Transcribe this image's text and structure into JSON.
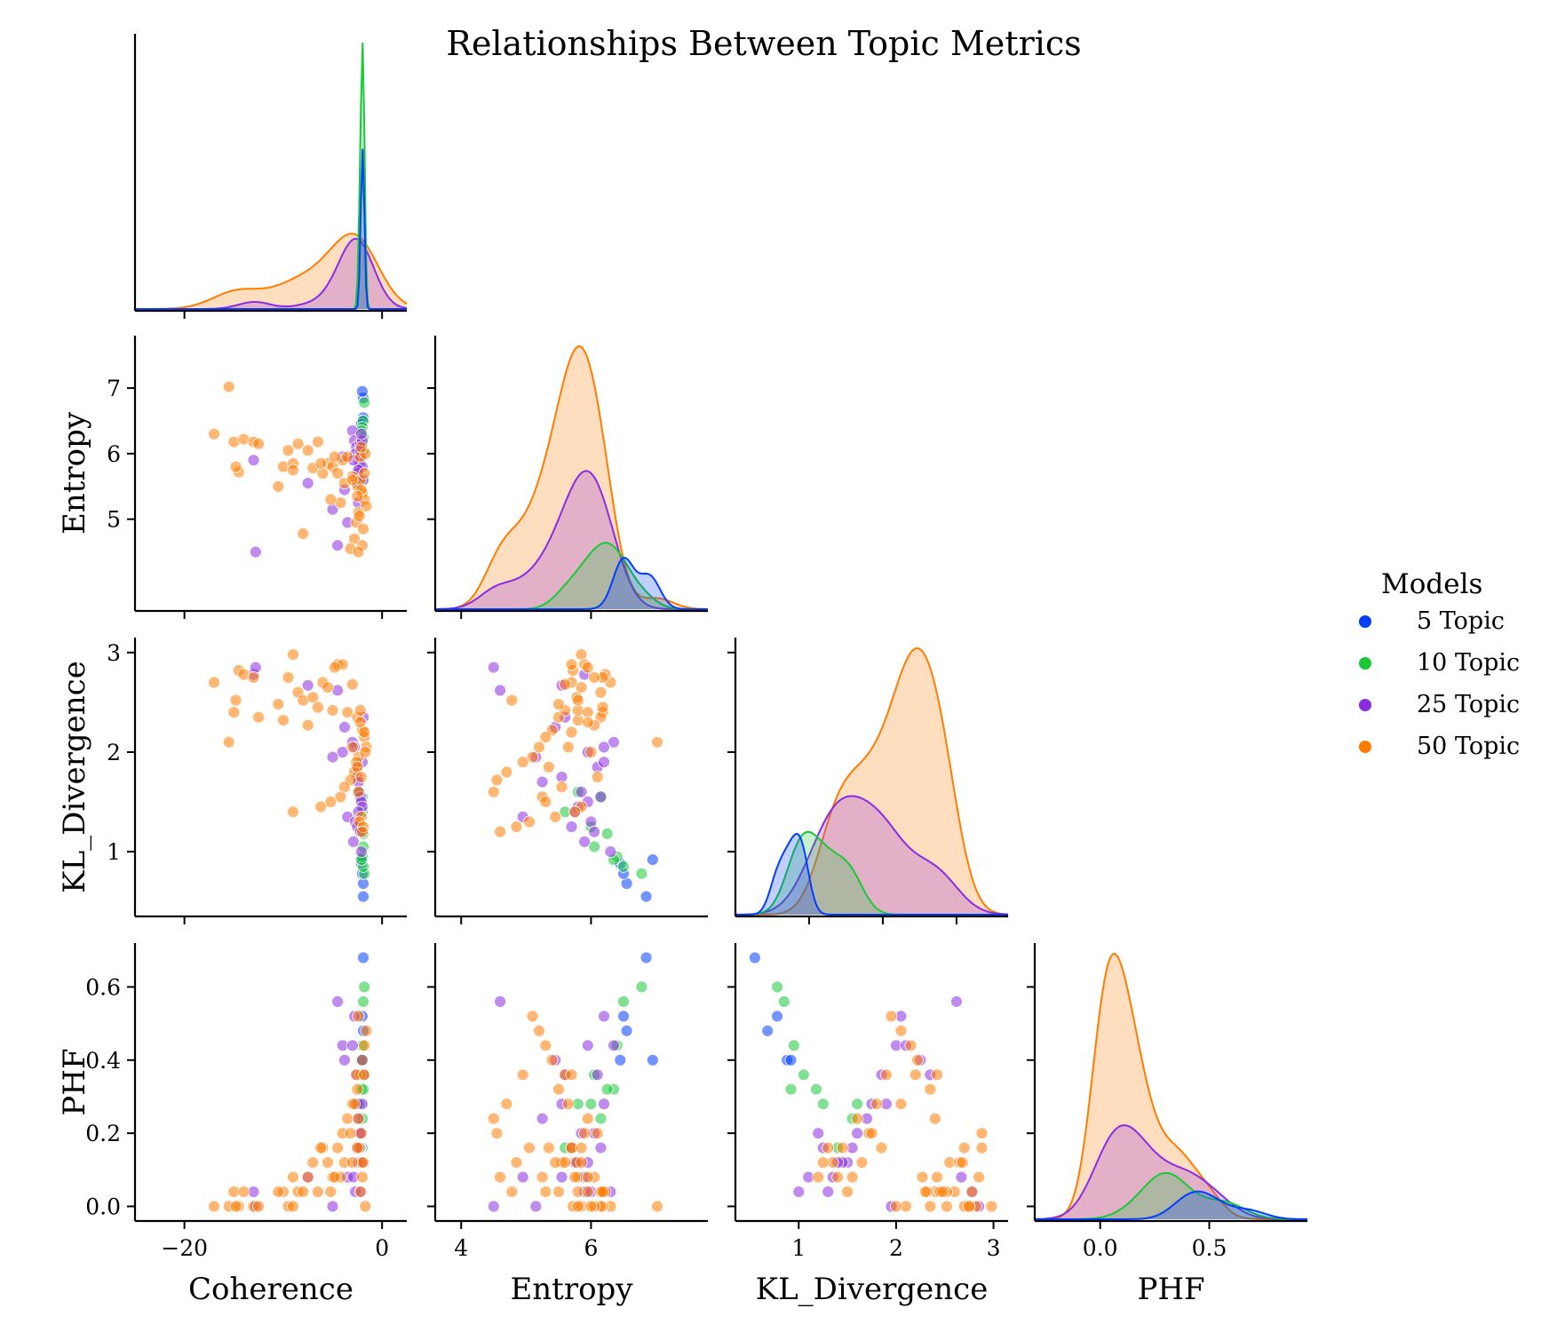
{
  "chart_data": {
    "type": "scatter",
    "title": "Relationships Between Topic Metrics",
    "variables": [
      "Coherence",
      "Entropy",
      "KL_Divergence",
      "PHF"
    ],
    "legend": {
      "title": "Models",
      "placement": "right",
      "entries": [
        "5 Topic",
        "10 Topic",
        "25 Topic",
        "50 Topic"
      ]
    },
    "colors": {
      "5 Topic": "#023eff",
      "10 Topic": "#1ac938",
      "25 Topic": "#8b2be2",
      "50 Topic": "#ff7c00"
    },
    "axes": {
      "Coherence": {
        "range": [
          -25,
          2.5
        ],
        "ticks": [
          -20,
          0
        ],
        "tick_labels": [
          "−20",
          "0"
        ]
      },
      "Entropy": {
        "range": [
          3.6,
          7.8
        ],
        "ticks": [
          4,
          5,
          6,
          7
        ],
        "tick_labels_y": [
          "5",
          "6",
          "7"
        ],
        "tick_labels_x": [
          "4",
          "6"
        ]
      },
      "KL_Divergence": {
        "range": [
          0.35,
          3.15
        ],
        "range_diag": [
          0.0,
          3.7
        ],
        "ticks": [
          1,
          2,
          3
        ],
        "tick_labels": [
          "1",
          "2",
          "3"
        ]
      },
      "PHF": {
        "range": [
          -0.04,
          0.72
        ],
        "range_diag": [
          -0.3,
          0.95
        ],
        "ticks_y": [
          0.0,
          0.2,
          0.4,
          0.6
        ],
        "tick_labels_y": [
          "0.0",
          "0.2",
          "0.4",
          "0.6"
        ],
        "ticks_x": [
          0.0,
          0.5
        ],
        "tick_labels_x": [
          "0.0",
          "0.5"
        ]
      }
    },
    "series": [
      {
        "name": "5 Topic",
        "coherence": [
          -1.9,
          -1.9,
          -2.0,
          -2.1,
          -2.0
        ],
        "entropy": [
          6.85,
          6.55,
          6.5,
          6.45,
          6.95
        ],
        "kl_divergence": [
          0.55,
          0.68,
          0.78,
          0.88,
          0.92
        ],
        "phf": [
          0.68,
          0.48,
          0.52,
          0.4,
          0.4
        ]
      },
      {
        "name": "10 Topic",
        "coherence": [
          -1.8,
          -1.9,
          -2.0,
          -2.1,
          -1.9,
          -2.2,
          -2.0,
          -2.3,
          -1.9,
          -2.0
        ],
        "entropy": [
          6.78,
          6.5,
          6.4,
          6.35,
          6.05,
          6.0,
          5.6,
          5.8,
          6.25,
          6.15
        ],
        "kl_divergence": [
          0.78,
          0.85,
          0.95,
          0.92,
          1.05,
          1.25,
          1.4,
          1.6,
          1.18,
          1.55
        ],
        "phf": [
          0.6,
          0.56,
          0.44,
          0.32,
          0.36,
          0.28,
          0.16,
          0.28,
          0.32,
          0.24
        ]
      },
      {
        "name": "25 Topic",
        "coherence": [
          -13.0,
          -12.8,
          -7.5,
          -4.5,
          -4.0,
          -3.0,
          -2.8,
          -2.6,
          -2.5,
          -2.4,
          -2.3,
          -2.2,
          -2.1,
          -2.0,
          -3.5,
          -2.7,
          -2.5,
          -2.2,
          -2.0,
          -1.9,
          -3.8,
          -2.4,
          -2.9,
          -2.1,
          -5.0
        ],
        "entropy": [
          5.9,
          4.5,
          5.55,
          4.6,
          5.95,
          6.35,
          6.2,
          6.1,
          5.55,
          5.25,
          5.85,
          6.15,
          5.95,
          5.8,
          4.95,
          6.0,
          5.7,
          6.05,
          6.2,
          5.6,
          5.45,
          5.75,
          5.9,
          6.3,
          5.15
        ],
        "kl_divergence": [
          2.78,
          2.85,
          2.67,
          2.62,
          2.0,
          2.1,
          2.05,
          1.85,
          1.75,
          1.7,
          1.6,
          1.55,
          1.5,
          1.45,
          1.35,
          1.3,
          1.25,
          1.2,
          1.9,
          2.35,
          2.25,
          1.4,
          1.1,
          1.0,
          1.95
        ],
        "phf": [
          0.04,
          0.0,
          0.08,
          0.56,
          0.44,
          0.44,
          0.52,
          0.36,
          0.28,
          0.24,
          0.2,
          0.16,
          0.12,
          0.12,
          0.08,
          0.04,
          0.16,
          0.2,
          0.28,
          0.36,
          0.4,
          0.12,
          0.08,
          0.04,
          0.0
        ]
      },
      {
        "name": "50 Topic",
        "coherence": [
          -17.0,
          -15.5,
          -15.0,
          -14.5,
          -14.0,
          -13.0,
          -12.5,
          -10.0,
          -9.5,
          -9.0,
          -8.5,
          -8.0,
          -7.5,
          -7.0,
          -6.5,
          -6.0,
          -5.5,
          -5.0,
          -4.5,
          -4.0,
          -3.5,
          -3.0,
          -2.5,
          -2.2,
          -2.0,
          -1.8,
          -1.6,
          -2.4,
          -2.6,
          -2.8,
          -3.2,
          -3.8,
          -4.2,
          -5.2,
          -6.2,
          -9.0,
          -2.1,
          -2.3,
          -1.9,
          -2.0,
          -2.2,
          -1.7,
          -2.5,
          -3.0,
          -4.8,
          -10.5,
          -14.8,
          -2.1,
          -2.4,
          -1.8
        ],
        "entropy": [
          6.3,
          7.02,
          6.18,
          5.72,
          6.22,
          6.18,
          6.15,
          5.8,
          6.05,
          5.85,
          6.15,
          4.78,
          6.05,
          5.78,
          6.18,
          5.7,
          5.85,
          5.8,
          5.7,
          5.9,
          5.95,
          5.65,
          5.5,
          5.6,
          5.4,
          5.3,
          5.2,
          5.1,
          4.95,
          4.7,
          4.55,
          5.55,
          5.25,
          5.3,
          5.85,
          5.75,
          5.45,
          5.05,
          4.85,
          4.6,
          5.95,
          6.0,
          5.35,
          5.6,
          5.95,
          5.5,
          5.8,
          6.1,
          4.5,
          5.7
        ],
        "kl_divergence": [
          2.7,
          2.1,
          2.4,
          2.82,
          2.78,
          2.75,
          2.35,
          2.32,
          2.75,
          2.98,
          2.6,
          2.52,
          2.27,
          2.55,
          2.45,
          2.7,
          2.65,
          2.42,
          2.88,
          2.88,
          2.4,
          2.05,
          2.35,
          2.42,
          2.22,
          2.15,
          2.05,
          1.95,
          1.9,
          1.8,
          1.72,
          1.65,
          1.55,
          1.5,
          1.45,
          1.4,
          1.35,
          1.3,
          1.25,
          1.2,
          2.3,
          2.0,
          1.85,
          2.68,
          2.85,
          2.48,
          2.52,
          1.75,
          1.6,
          2.2
        ],
        "phf": [
          0.0,
          0.0,
          0.04,
          0.0,
          0.04,
          0.0,
          0.0,
          0.04,
          0.0,
          0.0,
          0.04,
          0.04,
          0.08,
          0.12,
          0.04,
          0.16,
          0.12,
          0.08,
          0.16,
          0.2,
          0.24,
          0.28,
          0.32,
          0.36,
          0.4,
          0.44,
          0.48,
          0.52,
          0.36,
          0.28,
          0.2,
          0.12,
          0.08,
          0.04,
          0.16,
          0.08,
          0.12,
          0.16,
          0.12,
          0.08,
          0.04,
          0.0,
          0.16,
          0.12,
          0.08,
          0.04,
          0.0,
          0.2,
          0.24,
          0.36
        ]
      }
    ]
  }
}
